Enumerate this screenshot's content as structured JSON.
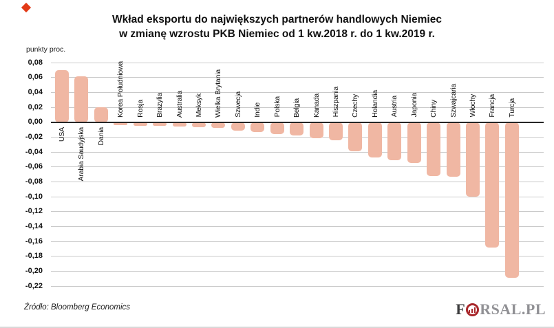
{
  "page": {
    "title_line1": "Wkład eksportu do największych partnerów handlowych Niemiec",
    "title_line2": "w zmianę wzrostu PKB Niemiec od 1 kw.2018 r. do 1 kw.2019 r."
  },
  "chart_data": {
    "type": "bar",
    "title": "Wkład eksportu do największych partnerów handlowych Niemiec w zmianę wzrostu PKB Niemiec od 1 kw.2018 r. do 1 kw.2019 r.",
    "ylabel": "punkty proc.",
    "xlabel": "",
    "ylim": [
      -0.22,
      0.08
    ],
    "ytick_step": 0.02,
    "ytick_labels": [
      "0,08",
      "0,06",
      "0,04",
      "0,02",
      "0,00",
      "-0,02",
      "-0,04",
      "-0,06",
      "-0,08",
      "-0,10",
      "-0,12",
      "-0,14",
      "-0,16",
      "-0,18",
      "-0,20",
      "-0,22"
    ],
    "grid": true,
    "legend": "none",
    "bar_color": "#f0b7a3",
    "categories": [
      "USA",
      "Arabia Saudyjska",
      "Dania",
      "Korea Południowa",
      "Rosja",
      "Brazylia",
      "Australia",
      "Meksyk",
      "Wielka Brytania",
      "Szwecja",
      "Indie",
      "Polska",
      "Belgia",
      "Kanada",
      "Hiszpania",
      "Czechy",
      "Holandia",
      "Austria",
      "Japonia",
      "Chiny",
      "Szwajcaria",
      "Włochy",
      "Francja",
      "Turcja"
    ],
    "values": [
      0.07,
      0.062,
      0.02,
      -0.004,
      -0.005,
      -0.005,
      -0.006,
      -0.007,
      -0.008,
      -0.011,
      -0.013,
      -0.016,
      -0.018,
      -0.022,
      -0.024,
      -0.039,
      -0.047,
      -0.051,
      -0.055,
      -0.072,
      -0.073,
      -0.1,
      -0.168,
      -0.209
    ]
  },
  "footer": {
    "source": "Źródło: Bloomberg Economics",
    "logo_prefix": "F",
    "logo_suffix": "RSAL",
    "logo_tld": ".PL"
  },
  "decor": {
    "corner_mark_color": "#e23a17",
    "gridline_color": "#c9c9c9",
    "zero_line_color": "#262626",
    "logo_ring_color": "#a8272b"
  }
}
